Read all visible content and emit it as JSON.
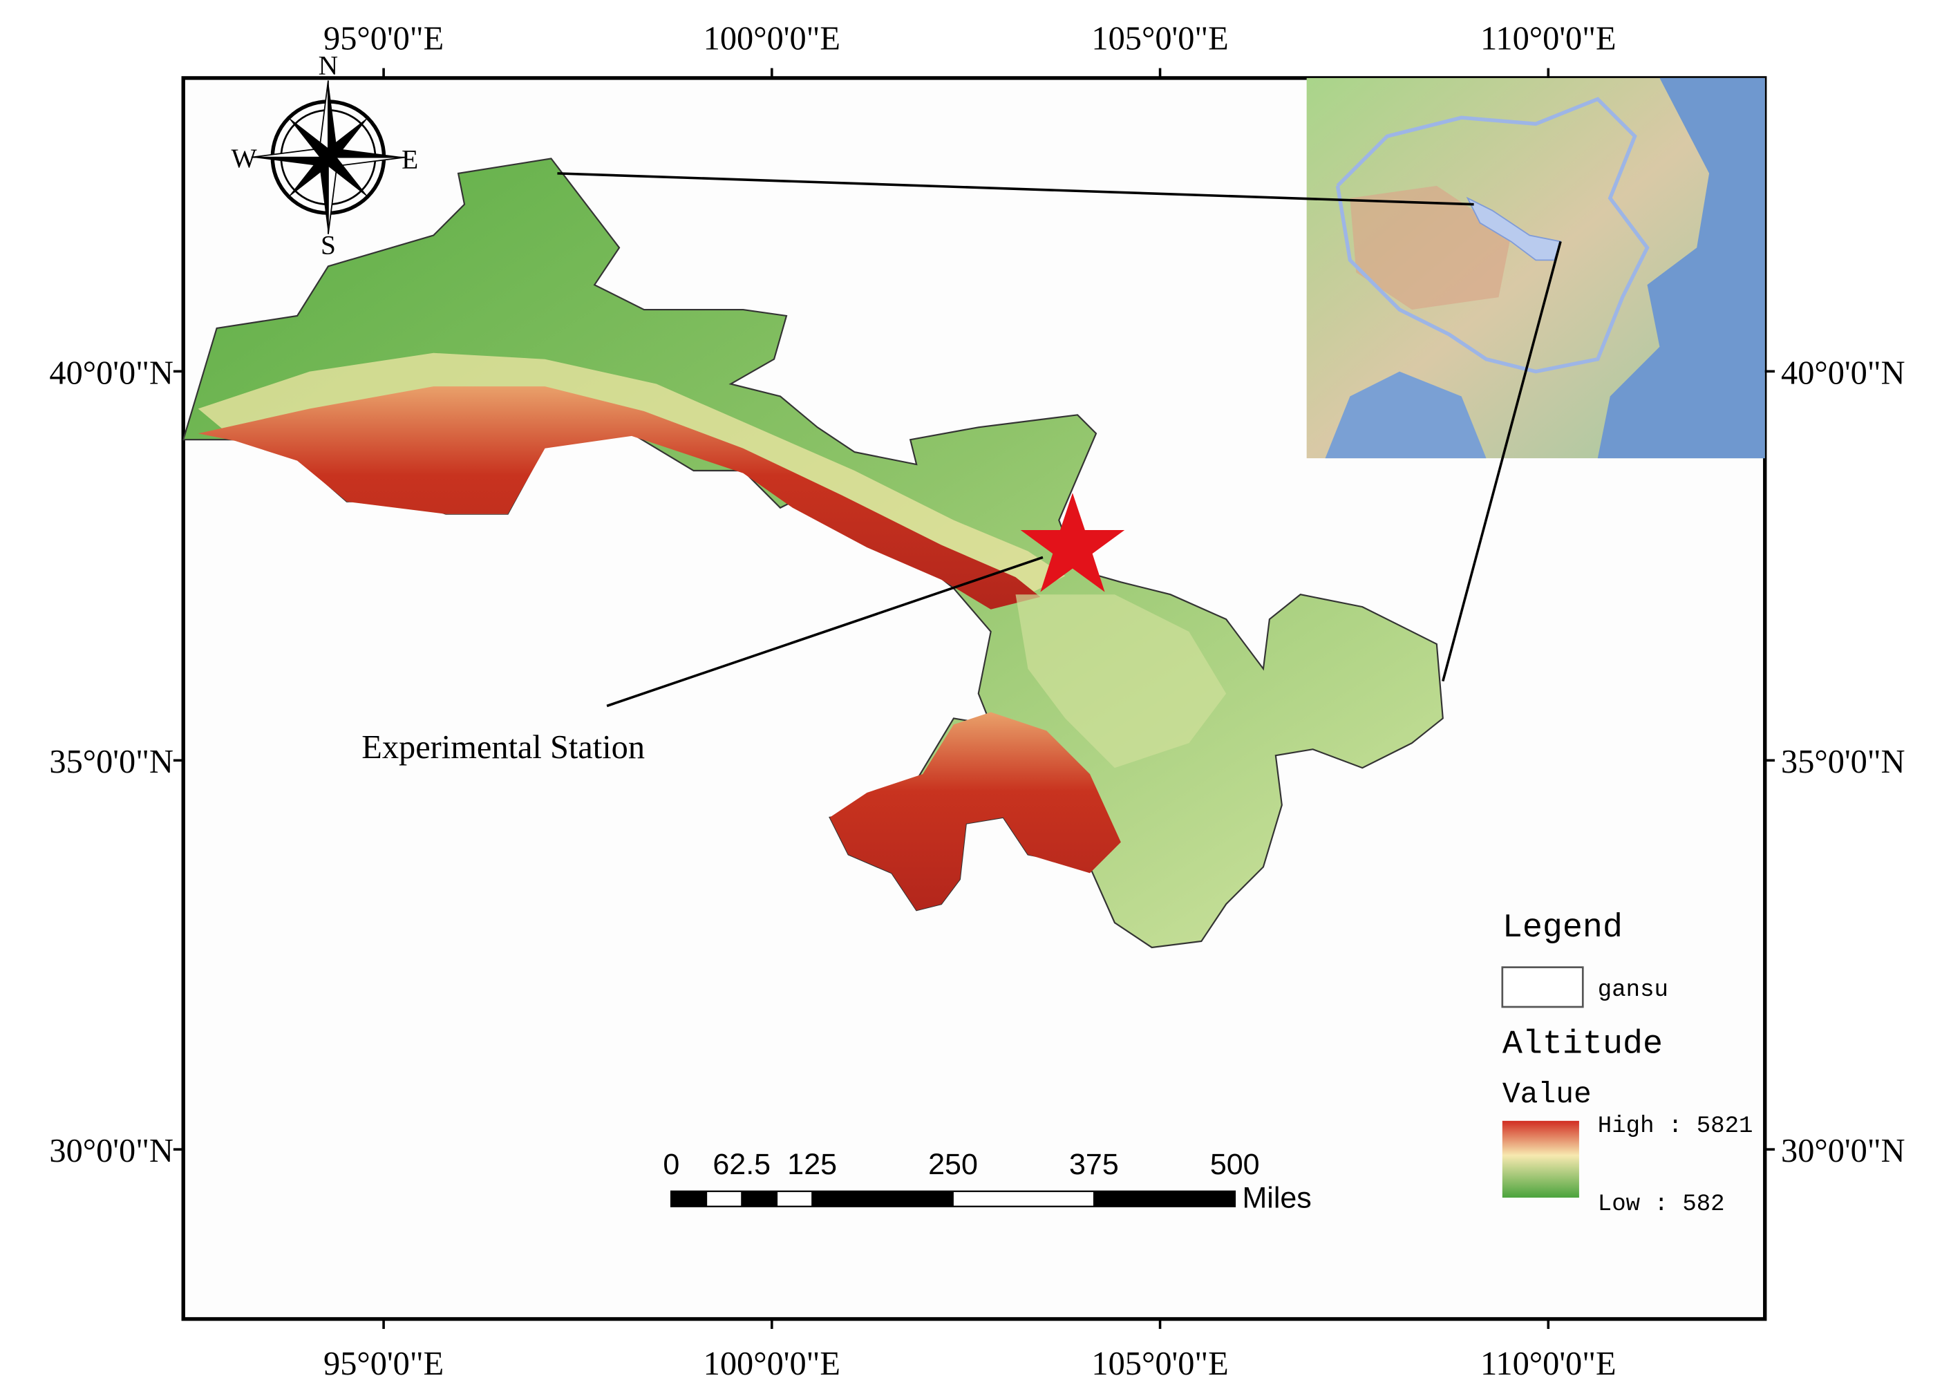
{
  "graticule": {
    "xlim": [
      92.42,
      112.79
    ],
    "ylim": [
      27.82,
      43.77
    ],
    "xticks": [
      {
        "value": 95,
        "label": "95°0'0\"E"
      },
      {
        "value": 100,
        "label": "100°0'0\"E"
      },
      {
        "value": 105,
        "label": "105°0'0\"E"
      },
      {
        "value": 110,
        "label": "110°0'0\"E"
      }
    ],
    "yticks": [
      {
        "value": 30,
        "label": "30°0'0\"N"
      },
      {
        "value": 35,
        "label": "35°0'0\"N"
      },
      {
        "value": 40,
        "label": "40°0'0\"N"
      }
    ]
  },
  "compass": {
    "north": "N",
    "south": "S",
    "west": "W",
    "east": "E"
  },
  "annotation": "Experimental Station",
  "scale_bar": {
    "ticks": [
      0,
      62.5,
      125,
      250,
      375,
      500
    ],
    "unit": "Miles"
  },
  "legend": {
    "title": "Legend",
    "layer": "gansu",
    "field": "Altitude",
    "subfield": "Value",
    "high": "High : 5821",
    "low": "Low : 582"
  }
}
